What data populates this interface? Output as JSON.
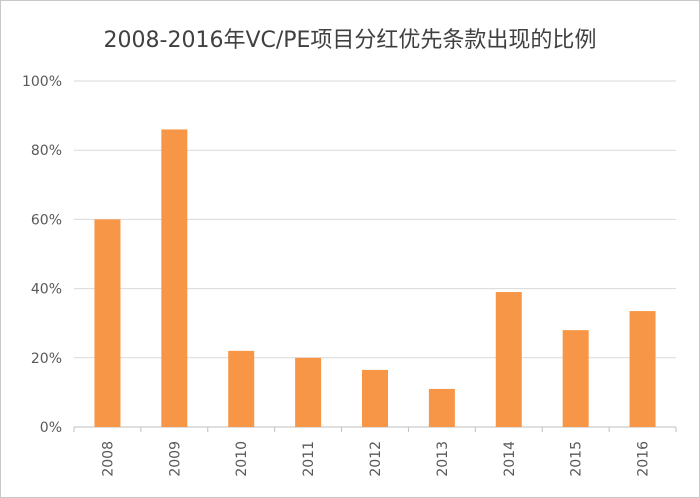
{
  "chart_data": {
    "type": "bar",
    "title": "2008-2016年VC/PE项目分红优先条款出现的比例",
    "categories": [
      "2008",
      "2009",
      "2010",
      "2011",
      "2012",
      "2013",
      "2014",
      "2015",
      "2016"
    ],
    "values": [
      60,
      86,
      22,
      20,
      16.5,
      11,
      39,
      28,
      33.5
    ],
    "ylim": [
      0,
      100
    ],
    "yticks": [
      "0%",
      "20%",
      "40%",
      "60%",
      "80%",
      "100%"
    ],
    "xlabel": "",
    "ylabel": "",
    "grid": true,
    "bar_color": "#F79646",
    "grid_color": "#D9D9D9"
  }
}
